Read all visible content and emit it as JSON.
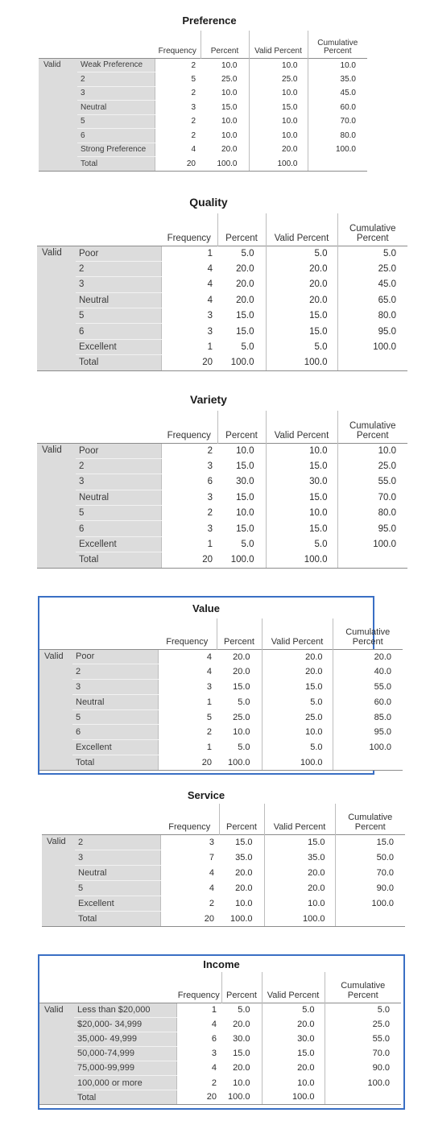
{
  "headers": {
    "frequency": "Frequency",
    "percent": "Percent",
    "valid_percent": "Valid Percent",
    "cumulative": "Cumulative\nPercent"
  },
  "valid_label": "Valid",
  "tables": [
    {
      "title": "Preference",
      "rows": [
        {
          "cat": "Weak Preference",
          "freq": "2",
          "pct": "10.0",
          "vpct": "10.0",
          "cum": "10.0"
        },
        {
          "cat": "2",
          "freq": "5",
          "pct": "25.0",
          "vpct": "25.0",
          "cum": "35.0"
        },
        {
          "cat": "3",
          "freq": "2",
          "pct": "10.0",
          "vpct": "10.0",
          "cum": "45.0"
        },
        {
          "cat": "Neutral",
          "freq": "3",
          "pct": "15.0",
          "vpct": "15.0",
          "cum": "60.0"
        },
        {
          "cat": "5",
          "freq": "2",
          "pct": "10.0",
          "vpct": "10.0",
          "cum": "70.0"
        },
        {
          "cat": "6",
          "freq": "2",
          "pct": "10.0",
          "vpct": "10.0",
          "cum": "80.0"
        },
        {
          "cat": "Strong Preference",
          "freq": "4",
          "pct": "20.0",
          "vpct": "20.0",
          "cum": "100.0"
        },
        {
          "cat": "Total",
          "freq": "20",
          "pct": "100.0",
          "vpct": "100.0",
          "cum": ""
        }
      ]
    },
    {
      "title": "Quality",
      "rows": [
        {
          "cat": "Poor",
          "freq": "1",
          "pct": "5.0",
          "vpct": "5.0",
          "cum": "5.0"
        },
        {
          "cat": "2",
          "freq": "4",
          "pct": "20.0",
          "vpct": "20.0",
          "cum": "25.0"
        },
        {
          "cat": "3",
          "freq": "4",
          "pct": "20.0",
          "vpct": "20.0",
          "cum": "45.0"
        },
        {
          "cat": "Neutral",
          "freq": "4",
          "pct": "20.0",
          "vpct": "20.0",
          "cum": "65.0"
        },
        {
          "cat": "5",
          "freq": "3",
          "pct": "15.0",
          "vpct": "15.0",
          "cum": "80.0"
        },
        {
          "cat": "6",
          "freq": "3",
          "pct": "15.0",
          "vpct": "15.0",
          "cum": "95.0"
        },
        {
          "cat": "Excellent",
          "freq": "1",
          "pct": "5.0",
          "vpct": "5.0",
          "cum": "100.0"
        },
        {
          "cat": "Total",
          "freq": "20",
          "pct": "100.0",
          "vpct": "100.0",
          "cum": ""
        }
      ]
    },
    {
      "title": "Variety",
      "rows": [
        {
          "cat": "Poor",
          "freq": "2",
          "pct": "10.0",
          "vpct": "10.0",
          "cum": "10.0"
        },
        {
          "cat": "2",
          "freq": "3",
          "pct": "15.0",
          "vpct": "15.0",
          "cum": "25.0"
        },
        {
          "cat": "3",
          "freq": "6",
          "pct": "30.0",
          "vpct": "30.0",
          "cum": "55.0"
        },
        {
          "cat": "Neutral",
          "freq": "3",
          "pct": "15.0",
          "vpct": "15.0",
          "cum": "70.0"
        },
        {
          "cat": "5",
          "freq": "2",
          "pct": "10.0",
          "vpct": "10.0",
          "cum": "80.0"
        },
        {
          "cat": "6",
          "freq": "3",
          "pct": "15.0",
          "vpct": "15.0",
          "cum": "95.0"
        },
        {
          "cat": "Excellent",
          "freq": "1",
          "pct": "5.0",
          "vpct": "5.0",
          "cum": "100.0"
        },
        {
          "cat": "Total",
          "freq": "20",
          "pct": "100.0",
          "vpct": "100.0",
          "cum": ""
        }
      ]
    },
    {
      "title": "Value",
      "rows": [
        {
          "cat": "Poor",
          "freq": "4",
          "pct": "20.0",
          "vpct": "20.0",
          "cum": "20.0"
        },
        {
          "cat": "2",
          "freq": "4",
          "pct": "20.0",
          "vpct": "20.0",
          "cum": "40.0"
        },
        {
          "cat": "3",
          "freq": "3",
          "pct": "15.0",
          "vpct": "15.0",
          "cum": "55.0"
        },
        {
          "cat": "Neutral",
          "freq": "1",
          "pct": "5.0",
          "vpct": "5.0",
          "cum": "60.0"
        },
        {
          "cat": "5",
          "freq": "5",
          "pct": "25.0",
          "vpct": "25.0",
          "cum": "85.0"
        },
        {
          "cat": "6",
          "freq": "2",
          "pct": "10.0",
          "vpct": "10.0",
          "cum": "95.0"
        },
        {
          "cat": "Excellent",
          "freq": "1",
          "pct": "5.0",
          "vpct": "5.0",
          "cum": "100.0"
        },
        {
          "cat": "Total",
          "freq": "20",
          "pct": "100.0",
          "vpct": "100.0",
          "cum": ""
        }
      ]
    },
    {
      "title": "Service",
      "rows": [
        {
          "cat": "2",
          "freq": "3",
          "pct": "15.0",
          "vpct": "15.0",
          "cum": "15.0"
        },
        {
          "cat": "3",
          "freq": "7",
          "pct": "35.0",
          "vpct": "35.0",
          "cum": "50.0"
        },
        {
          "cat": "Neutral",
          "freq": "4",
          "pct": "20.0",
          "vpct": "20.0",
          "cum": "70.0"
        },
        {
          "cat": "5",
          "freq": "4",
          "pct": "20.0",
          "vpct": "20.0",
          "cum": "90.0"
        },
        {
          "cat": "Excellent",
          "freq": "2",
          "pct": "10.0",
          "vpct": "10.0",
          "cum": "100.0"
        },
        {
          "cat": "Total",
          "freq": "20",
          "pct": "100.0",
          "vpct": "100.0",
          "cum": ""
        }
      ]
    },
    {
      "title": "Income",
      "rows": [
        {
          "cat": "Less than $20,000",
          "freq": "1",
          "pct": "5.0",
          "vpct": "5.0",
          "cum": "5.0"
        },
        {
          "cat": "$20,000- 34,999",
          "freq": "4",
          "pct": "20.0",
          "vpct": "20.0",
          "cum": "25.0"
        },
        {
          "cat": "35,000- 49,999",
          "freq": "6",
          "pct": "30.0",
          "vpct": "30.0",
          "cum": "55.0"
        },
        {
          "cat": "50,000-74,999",
          "freq": "3",
          "pct": "15.0",
          "vpct": "15.0",
          "cum": "70.0"
        },
        {
          "cat": "75,000-99,999",
          "freq": "4",
          "pct": "20.0",
          "vpct": "20.0",
          "cum": "90.0"
        },
        {
          "cat": "100,000 or more",
          "freq": "2",
          "pct": "10.0",
          "vpct": "10.0",
          "cum": "100.0"
        },
        {
          "cat": "Total",
          "freq": "20",
          "pct": "100.0",
          "vpct": "100.0",
          "cum": ""
        }
      ]
    }
  ]
}
